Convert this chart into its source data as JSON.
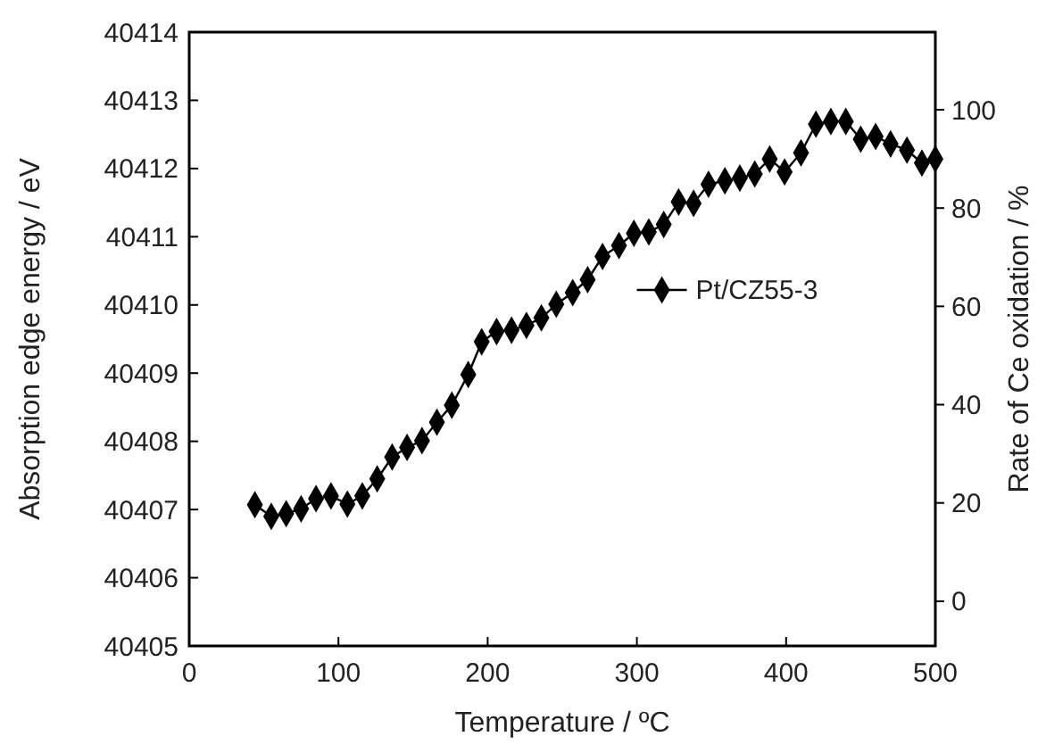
{
  "chart_data": {
    "type": "line",
    "xlabel": "Temperature / ºC",
    "ylabel": "Absorption edge energy  / eV",
    "y2label": "Rate of Ce oxidation / %",
    "x": [
      44,
      55,
      65,
      75,
      85,
      95,
      106,
      116,
      126,
      136,
      146,
      156,
      166,
      176,
      187,
      196,
      206,
      216,
      226,
      236,
      246,
      257,
      267,
      277,
      288,
      298,
      308,
      318,
      328,
      338,
      348,
      359,
      369,
      379,
      389,
      399,
      410,
      420,
      430,
      440,
      450,
      460,
      470,
      481,
      491,
      500
    ],
    "series": [
      {
        "name": "Pt/CZ55-3",
        "color": "#000000",
        "values": [
          40407.07,
          40406.9,
          40406.94,
          40407.01,
          40407.16,
          40407.2,
          40407.08,
          40407.2,
          40407.45,
          40407.77,
          40407.91,
          40408.01,
          40408.28,
          40408.53,
          40408.98,
          40409.46,
          40409.61,
          40409.63,
          40409.7,
          40409.81,
          40410.01,
          40410.18,
          40410.37,
          40410.71,
          40410.87,
          40411.05,
          40411.07,
          40411.18,
          40411.51,
          40411.49,
          40411.77,
          40411.82,
          40411.86,
          40411.92,
          40412.14,
          40411.95,
          40412.23,
          40412.65,
          40412.69,
          40412.69,
          40412.43,
          40412.47,
          40412.36,
          40412.27,
          40412.08,
          40412.14
        ]
      }
    ],
    "xlim": [
      0,
      500
    ],
    "xticks": [
      0,
      100,
      200,
      300,
      400,
      500
    ],
    "ylim": [
      40405,
      40414
    ],
    "yticks": [
      40405,
      40406,
      40407,
      40408,
      40409,
      40410,
      40411,
      40412,
      40413,
      40414
    ],
    "y2lim": [
      -9.1,
      115.8
    ],
    "y2ticks": [
      0,
      20,
      40,
      60,
      80,
      100
    ],
    "marker": "diamond",
    "line_style": "solid",
    "legend": "right",
    "grid": false
  }
}
